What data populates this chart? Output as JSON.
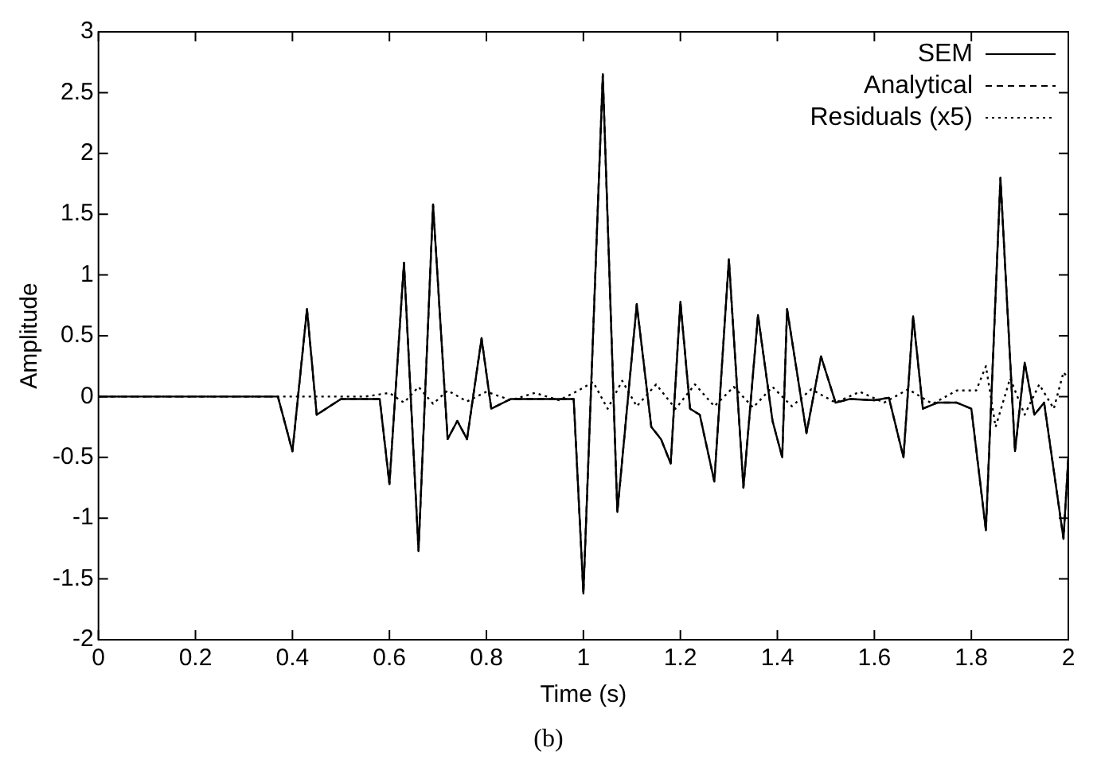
{
  "chart_data": {
    "type": "line",
    "xlabel": "Time (s)",
    "ylabel": "Amplitude",
    "xlim": [
      0,
      2
    ],
    "xticks": [
      0,
      0.2,
      0.4,
      0.6,
      0.8,
      1,
      1.2,
      1.4,
      1.6,
      1.8,
      2
    ],
    "ylim": [
      -2,
      3
    ],
    "yticks": [
      -2,
      -1.5,
      -1,
      -0.5,
      0,
      0.5,
      1,
      1.5,
      2,
      2.5,
      3
    ],
    "grid": false,
    "legend": "top right",
    "marker": "none",
    "annotations": [
      "(b)"
    ],
    "series": [
      {
        "name": "SEM",
        "color": "#000000",
        "line_style": "solid",
        "x": [
          0,
          0.37,
          0.4,
          0.43,
          0.45,
          0.5,
          0.58,
          0.6,
          0.63,
          0.66,
          0.69,
          0.72,
          0.74,
          0.76,
          0.79,
          0.81,
          0.85,
          0.98,
          1.0,
          1.04,
          1.07,
          1.11,
          1.14,
          1.16,
          1.18,
          1.2,
          1.22,
          1.24,
          1.27,
          1.3,
          1.33,
          1.36,
          1.39,
          1.41,
          1.42,
          1.46,
          1.49,
          1.52,
          1.55,
          1.6,
          1.63,
          1.66,
          1.68,
          1.7,
          1.73,
          1.77,
          1.8,
          1.83,
          1.86,
          1.89,
          1.91,
          1.93,
          1.95,
          1.99,
          2.0
        ],
        "values": [
          0,
          0,
          -0.45,
          0.72,
          -0.15,
          -0.02,
          -0.02,
          -0.72,
          1.1,
          -1.27,
          1.58,
          -0.35,
          -0.2,
          -0.35,
          0.48,
          -0.1,
          -0.02,
          -0.02,
          -1.62,
          2.65,
          -0.95,
          0.76,
          -0.25,
          -0.35,
          -0.55,
          0.78,
          -0.1,
          -0.15,
          -0.7,
          1.13,
          -0.75,
          0.67,
          -0.2,
          -0.5,
          0.72,
          -0.3,
          0.33,
          -0.05,
          -0.02,
          -0.03,
          -0.01,
          -0.5,
          0.66,
          -0.1,
          -0.05,
          -0.05,
          -0.1,
          -1.1,
          1.8,
          -0.45,
          0.28,
          -0.15,
          -0.05,
          -1.17,
          -0.5
        ]
      },
      {
        "name": "Analytical",
        "color": "#000000",
        "line_style": "dashed",
        "x": [
          0,
          0.37,
          0.4,
          0.43,
          0.45,
          0.5,
          0.58,
          0.6,
          0.63,
          0.66,
          0.69,
          0.72,
          0.74,
          0.76,
          0.79,
          0.81,
          0.85,
          0.98,
          1.0,
          1.04,
          1.07,
          1.11,
          1.14,
          1.16,
          1.18,
          1.2,
          1.22,
          1.24,
          1.27,
          1.3,
          1.33,
          1.36,
          1.39,
          1.41,
          1.42,
          1.46,
          1.49,
          1.52,
          1.55,
          1.6,
          1.63,
          1.66,
          1.68,
          1.7,
          1.73,
          1.77,
          1.8,
          1.83,
          1.86,
          1.89,
          1.91,
          1.93,
          1.95,
          1.99,
          2.0
        ],
        "values": [
          0,
          0,
          -0.45,
          0.72,
          -0.15,
          -0.02,
          -0.02,
          -0.72,
          1.1,
          -1.27,
          1.58,
          -0.35,
          -0.2,
          -0.35,
          0.48,
          -0.1,
          -0.02,
          -0.02,
          -1.62,
          2.65,
          -0.95,
          0.76,
          -0.25,
          -0.35,
          -0.55,
          0.78,
          -0.1,
          -0.15,
          -0.7,
          1.13,
          -0.75,
          0.67,
          -0.2,
          -0.5,
          0.72,
          -0.3,
          0.33,
          -0.05,
          -0.02,
          -0.03,
          -0.01,
          -0.5,
          0.66,
          -0.1,
          -0.05,
          -0.05,
          -0.1,
          -1.1,
          1.8,
          -0.45,
          0.28,
          -0.15,
          -0.05,
          -1.17,
          -0.5
        ]
      },
      {
        "name": "Residuals (x5)",
        "color": "#000000",
        "line_style": "dotted",
        "x": [
          0,
          0.55,
          0.6,
          0.63,
          0.66,
          0.69,
          0.72,
          0.76,
          0.8,
          0.85,
          0.9,
          0.95,
          0.99,
          1.02,
          1.05,
          1.08,
          1.11,
          1.15,
          1.19,
          1.23,
          1.27,
          1.31,
          1.35,
          1.39,
          1.43,
          1.47,
          1.52,
          1.57,
          1.62,
          1.67,
          1.72,
          1.77,
          1.81,
          1.83,
          1.85,
          1.88,
          1.91,
          1.94,
          1.97,
          1.99,
          2.0
        ],
        "values": [
          0,
          0,
          0.03,
          -0.05,
          0.08,
          -0.06,
          0.05,
          -0.04,
          0.04,
          -0.03,
          0.03,
          -0.03,
          0.05,
          0.12,
          -0.1,
          0.13,
          -0.08,
          0.1,
          -0.1,
          0.1,
          -0.08,
          0.08,
          -0.09,
          0.08,
          -0.08,
          0.06,
          -0.05,
          0.04,
          -0.05,
          0.06,
          -0.06,
          0.05,
          0.05,
          0.25,
          -0.25,
          0.15,
          -0.15,
          0.1,
          -0.1,
          0.2,
          0.15
        ]
      }
    ]
  }
}
